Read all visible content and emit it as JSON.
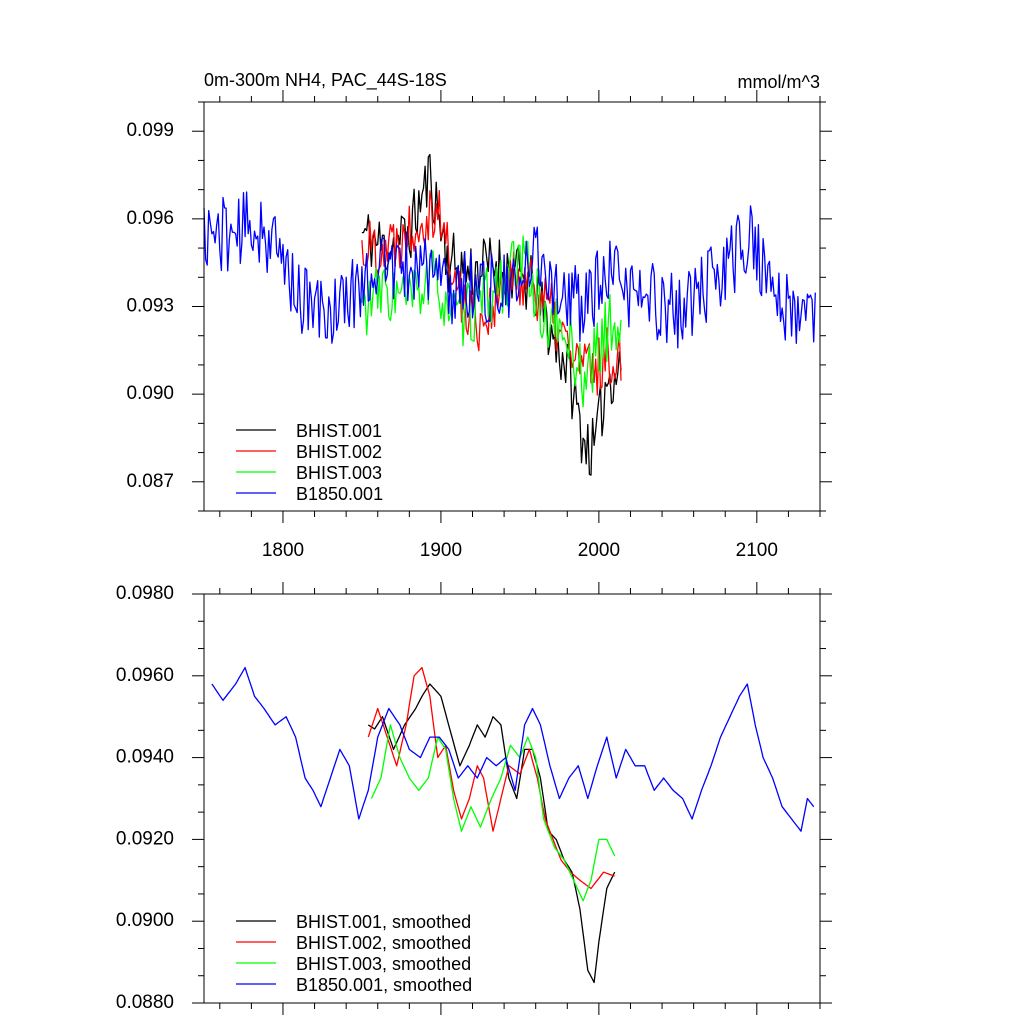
{
  "colors": {
    "BHIST.001": "#000000",
    "BHIST.002": "#ff0000",
    "BHIST.003": "#00ff00",
    "B1850.001": "#0000ff",
    "axis": "#000000",
    "background": "#ffffff"
  },
  "chart_data": [
    {
      "type": "line",
      "title": "0m-300m NH4, PAC_44S-18S",
      "units": "mmol/m^3",
      "xlim": [
        1750,
        2140
      ],
      "ylim": [
        0.086,
        0.1
      ],
      "x_ticks": [
        1800,
        1900,
        2000,
        2100
      ],
      "x_tick_labels": [
        "1800",
        "1900",
        "2000",
        "2100"
      ],
      "y_ticks": [
        0.087,
        0.09,
        0.093,
        0.096,
        0.099
      ],
      "y_tick_labels": [
        "0.087",
        "0.090",
        "0.093",
        "0.096",
        "0.099"
      ],
      "legend_position": "bottom-left",
      "series": [
        {
          "name": "BHIST.001",
          "color": "#000000",
          "x_start": 1850,
          "x_end": 2014,
          "knots": [
            [
              1850,
              0.0955
            ],
            [
              1865,
              0.095
            ],
            [
              1880,
              0.0955
            ],
            [
              1893,
              0.0975
            ],
            [
              1905,
              0.0945
            ],
            [
              1920,
              0.0942
            ],
            [
              1935,
              0.0945
            ],
            [
              1950,
              0.094
            ],
            [
              1960,
              0.0935
            ],
            [
              1970,
              0.092
            ],
            [
              1980,
              0.091
            ],
            [
              1990,
              0.0885
            ],
            [
              1997,
              0.088
            ],
            [
              2005,
              0.0905
            ],
            [
              2014,
              0.091
            ]
          ],
          "noise": 0.0011,
          "seed": 11
        },
        {
          "name": "BHIST.002",
          "color": "#ff0000",
          "x_start": 1850,
          "x_end": 2014,
          "knots": [
            [
              1850,
              0.095
            ],
            [
              1870,
              0.0952
            ],
            [
              1885,
              0.096
            ],
            [
              1898,
              0.0965
            ],
            [
              1910,
              0.0935
            ],
            [
              1925,
              0.0925
            ],
            [
              1940,
              0.0935
            ],
            [
              1955,
              0.0942
            ],
            [
              1965,
              0.0932
            ],
            [
              1975,
              0.0922
            ],
            [
              1985,
              0.0912
            ],
            [
              1995,
              0.0908
            ],
            [
              2005,
              0.0912
            ],
            [
              2014,
              0.0915
            ]
          ],
          "noise": 0.0011,
          "seed": 22
        },
        {
          "name": "BHIST.003",
          "color": "#00ff00",
          "x_start": 1850,
          "x_end": 2014,
          "knots": [
            [
              1850,
              0.093
            ],
            [
              1865,
              0.0935
            ],
            [
              1880,
              0.0932
            ],
            [
              1895,
              0.094
            ],
            [
              1910,
              0.0925
            ],
            [
              1925,
              0.093
            ],
            [
              1945,
              0.0942
            ],
            [
              1955,
              0.0945
            ],
            [
              1965,
              0.0925
            ],
            [
              1980,
              0.092
            ],
            [
              1990,
              0.0905
            ],
            [
              2000,
              0.0915
            ],
            [
              2007,
              0.0925
            ],
            [
              2014,
              0.092
            ]
          ],
          "noise": 0.0011,
          "seed": 33
        },
        {
          "name": "B1850.001",
          "color": "#0000ff",
          "x_start": 1750,
          "x_end": 2137,
          "knots": [
            [
              1750,
              0.0955
            ],
            [
              1770,
              0.0955
            ],
            [
              1785,
              0.0958
            ],
            [
              1800,
              0.0945
            ],
            [
              1815,
              0.093
            ],
            [
              1830,
              0.0928
            ],
            [
              1845,
              0.0935
            ],
            [
              1860,
              0.0945
            ],
            [
              1875,
              0.0942
            ],
            [
              1890,
              0.0945
            ],
            [
              1905,
              0.0935
            ],
            [
              1920,
              0.0938
            ],
            [
              1935,
              0.0935
            ],
            [
              1950,
              0.0935
            ],
            [
              1960,
              0.095
            ],
            [
              1975,
              0.0935
            ],
            [
              1990,
              0.093
            ],
            [
              2005,
              0.094
            ],
            [
              2020,
              0.0935
            ],
            [
              2035,
              0.0932
            ],
            [
              2050,
              0.0928
            ],
            [
              2065,
              0.0935
            ],
            [
              2080,
              0.0942
            ],
            [
              2095,
              0.0955
            ],
            [
              2110,
              0.0935
            ],
            [
              2125,
              0.0925
            ],
            [
              2137,
              0.093
            ]
          ],
          "noise": 0.0013,
          "seed": 44
        }
      ]
    },
    {
      "type": "line",
      "title": "",
      "xlim": [
        1750,
        2140
      ],
      "ylim": [
        0.088,
        0.098
      ],
      "x_ticks": [
        1800,
        1900,
        2000,
        2100
      ],
      "x_tick_labels": [],
      "y_ticks": [
        0.088,
        0.09,
        0.092,
        0.094,
        0.096,
        0.098
      ],
      "y_tick_labels": [
        "0.0880",
        "0.0900",
        "0.0920",
        "0.0940",
        "0.0960",
        "0.0980"
      ],
      "legend_position": "bottom-left",
      "series": [
        {
          "name": "BHIST.001, smoothed",
          "color": "#000000",
          "x_start": 1854,
          "x_end": 2010,
          "knots": [
            [
              1854,
              0.0948
            ],
            [
              1858,
              0.0947
            ],
            [
              1863,
              0.095
            ],
            [
              1870,
              0.0942
            ],
            [
              1877,
              0.0948
            ],
            [
              1884,
              0.0952
            ],
            [
              1888,
              0.0955
            ],
            [
              1893,
              0.0958
            ],
            [
              1900,
              0.0955
            ],
            [
              1907,
              0.0945
            ],
            [
              1912,
              0.0938
            ],
            [
              1918,
              0.0943
            ],
            [
              1923,
              0.0948
            ],
            [
              1928,
              0.0945
            ],
            [
              1933,
              0.095
            ],
            [
              1938,
              0.0948
            ],
            [
              1943,
              0.0935
            ],
            [
              1948,
              0.093
            ],
            [
              1953,
              0.0942
            ],
            [
              1958,
              0.0942
            ],
            [
              1963,
              0.0935
            ],
            [
              1968,
              0.0922
            ],
            [
              1973,
              0.092
            ],
            [
              1978,
              0.0915
            ],
            [
              1983,
              0.0912
            ],
            [
              1988,
              0.0903
            ],
            [
              1993,
              0.0888
            ],
            [
              1997,
              0.0885
            ],
            [
              2000,
              0.0895
            ],
            [
              2005,
              0.0908
            ],
            [
              2010,
              0.0912
            ]
          ]
        },
        {
          "name": "BHIST.002, smoothed",
          "color": "#ff0000",
          "x_start": 1854,
          "x_end": 2010,
          "knots": [
            [
              1854,
              0.0945
            ],
            [
              1860,
              0.0952
            ],
            [
              1866,
              0.0945
            ],
            [
              1872,
              0.0938
            ],
            [
              1878,
              0.0948
            ],
            [
              1883,
              0.096
            ],
            [
              1888,
              0.0962
            ],
            [
              1893,
              0.0955
            ],
            [
              1898,
              0.094
            ],
            [
              1903,
              0.0943
            ],
            [
              1908,
              0.0932
            ],
            [
              1913,
              0.0925
            ],
            [
              1918,
              0.093
            ],
            [
              1923,
              0.0938
            ],
            [
              1927,
              0.0935
            ],
            [
              1933,
              0.0922
            ],
            [
              1938,
              0.093
            ],
            [
              1943,
              0.0938
            ],
            [
              1950,
              0.0936
            ],
            [
              1956,
              0.0942
            ],
            [
              1961,
              0.0935
            ],
            [
              1966,
              0.0925
            ],
            [
              1971,
              0.092
            ],
            [
              1976,
              0.0915
            ],
            [
              1982,
              0.0912
            ],
            [
              1988,
              0.091
            ],
            [
              1995,
              0.0908
            ],
            [
              2003,
              0.0912
            ],
            [
              2010,
              0.0911
            ]
          ]
        },
        {
          "name": "BHIST.003, smoothed",
          "color": "#00ff00",
          "x_start": 1856,
          "x_end": 2010,
          "knots": [
            [
              1856,
              0.093
            ],
            [
              1862,
              0.0935
            ],
            [
              1868,
              0.0948
            ],
            [
              1874,
              0.094
            ],
            [
              1880,
              0.0935
            ],
            [
              1886,
              0.0932
            ],
            [
              1892,
              0.0935
            ],
            [
              1898,
              0.0945
            ],
            [
              1903,
              0.0942
            ],
            [
              1908,
              0.093
            ],
            [
              1913,
              0.0922
            ],
            [
              1919,
              0.0928
            ],
            [
              1925,
              0.0923
            ],
            [
              1932,
              0.093
            ],
            [
              1938,
              0.0935
            ],
            [
              1944,
              0.0943
            ],
            [
              1950,
              0.094
            ],
            [
              1955,
              0.0945
            ],
            [
              1960,
              0.094
            ],
            [
              1965,
              0.0925
            ],
            [
              1972,
              0.0918
            ],
            [
              1978,
              0.0915
            ],
            [
              1984,
              0.091
            ],
            [
              1990,
              0.0905
            ],
            [
              1995,
              0.091
            ],
            [
              2000,
              0.092
            ],
            [
              2005,
              0.092
            ],
            [
              2010,
              0.0916
            ]
          ]
        },
        {
          "name": "B1850.001, smoothed",
          "color": "#0000ff",
          "x_start": 1755,
          "x_end": 2136,
          "knots": [
            [
              1755,
              0.0958
            ],
            [
              1762,
              0.0954
            ],
            [
              1770,
              0.0958
            ],
            [
              1776,
              0.0962
            ],
            [
              1782,
              0.0955
            ],
            [
              1788,
              0.0952
            ],
            [
              1795,
              0.0948
            ],
            [
              1802,
              0.095
            ],
            [
              1808,
              0.0945
            ],
            [
              1814,
              0.0935
            ],
            [
              1819,
              0.0932
            ],
            [
              1824,
              0.0928
            ],
            [
              1830,
              0.0935
            ],
            [
              1836,
              0.0942
            ],
            [
              1842,
              0.0938
            ],
            [
              1848,
              0.0925
            ],
            [
              1854,
              0.0932
            ],
            [
              1860,
              0.0945
            ],
            [
              1867,
              0.0952
            ],
            [
              1874,
              0.0948
            ],
            [
              1880,
              0.0942
            ],
            [
              1887,
              0.094
            ],
            [
              1893,
              0.0945
            ],
            [
              1899,
              0.0945
            ],
            [
              1905,
              0.0942
            ],
            [
              1911,
              0.0935
            ],
            [
              1917,
              0.0938
            ],
            [
              1923,
              0.0935
            ],
            [
              1929,
              0.094
            ],
            [
              1935,
              0.0938
            ],
            [
              1941,
              0.094
            ],
            [
              1947,
              0.0932
            ],
            [
              1953,
              0.0948
            ],
            [
              1958,
              0.0952
            ],
            [
              1963,
              0.0948
            ],
            [
              1969,
              0.0938
            ],
            [
              1975,
              0.093
            ],
            [
              1981,
              0.0935
            ],
            [
              1987,
              0.0938
            ],
            [
              1993,
              0.093
            ],
            [
              1999,
              0.0938
            ],
            [
              2005,
              0.0945
            ],
            [
              2011,
              0.0935
            ],
            [
              2017,
              0.0942
            ],
            [
              2023,
              0.0938
            ],
            [
              2029,
              0.0938
            ],
            [
              2035,
              0.0932
            ],
            [
              2041,
              0.0935
            ],
            [
              2047,
              0.0932
            ],
            [
              2053,
              0.093
            ],
            [
              2059,
              0.0925
            ],
            [
              2065,
              0.0932
            ],
            [
              2071,
              0.0938
            ],
            [
              2077,
              0.0945
            ],
            [
              2083,
              0.095
            ],
            [
              2089,
              0.0955
            ],
            [
              2094,
              0.0958
            ],
            [
              2099,
              0.0948
            ],
            [
              2104,
              0.094
            ],
            [
              2110,
              0.0935
            ],
            [
              2116,
              0.0928
            ],
            [
              2122,
              0.0925
            ],
            [
              2128,
              0.0922
            ],
            [
              2132,
              0.093
            ],
            [
              2136,
              0.0928
            ]
          ]
        }
      ]
    }
  ]
}
